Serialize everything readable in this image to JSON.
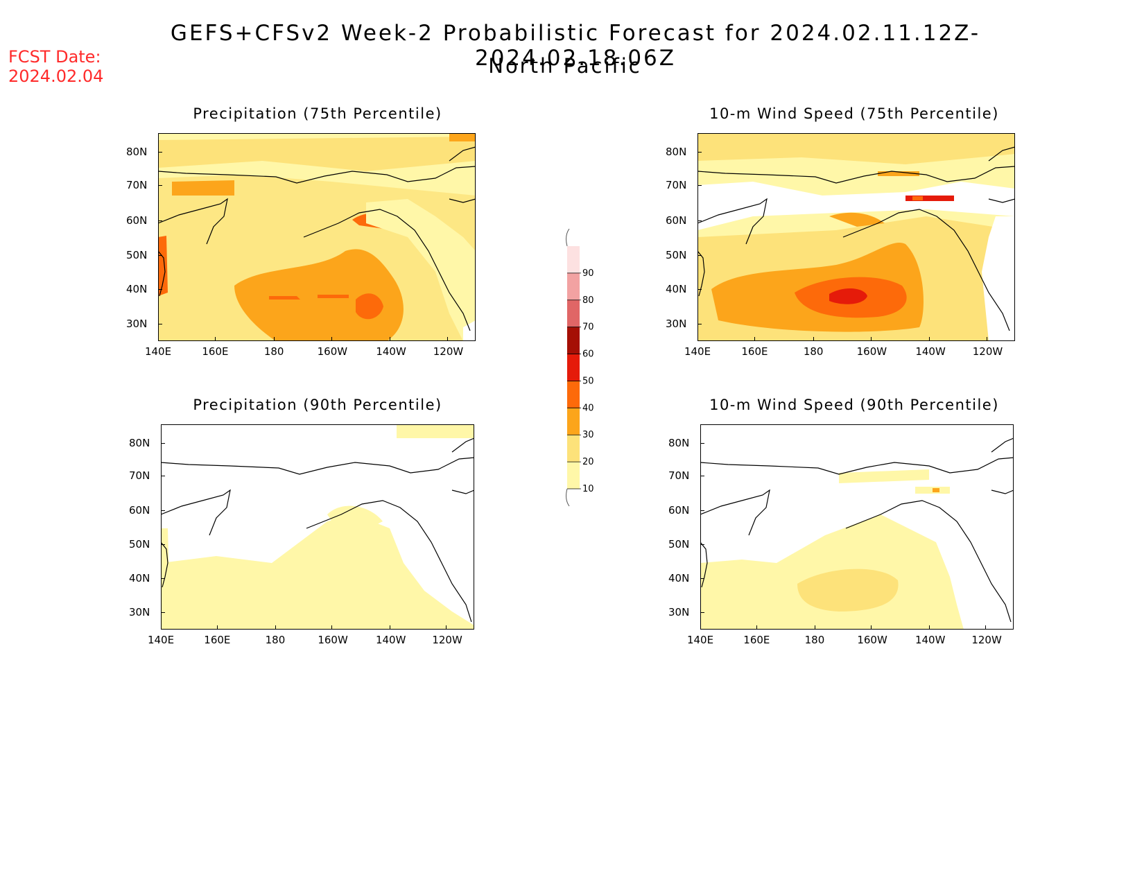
{
  "header": {
    "fcst_label": "FCST Date:",
    "fcst_date": "2024.02.04",
    "title": "GEFS+CFSv2 Week-2 Probabilistic Forecast for 2024.02.11.12Z-2024.02.18.06Z",
    "subtitle": "North Pacific"
  },
  "axes": {
    "lat_labels": [
      "80N",
      "70N",
      "60N",
      "50N",
      "40N",
      "30N"
    ],
    "lon_labels": [
      "140E",
      "160E",
      "180",
      "160W",
      "140W",
      "120W"
    ]
  },
  "panels": [
    {
      "title": "Precipitation (75th Percentile)"
    },
    {
      "title": "10-m Wind Speed (75th Percentile)"
    },
    {
      "title": "Precipitation (90th Percentile)"
    },
    {
      "title": "10-m Wind Speed (90th Percentile)"
    }
  ],
  "colorbar": {
    "levels": [
      "10",
      "20",
      "30",
      "40",
      "50",
      "60",
      "70",
      "80",
      "90"
    ],
    "colors": [
      "#fff7a8",
      "#fde27a",
      "#fca51b",
      "#fd6a0a",
      "#e51b0a",
      "#a50f05",
      "#e06666",
      "#f2a2a2",
      "#fde1e1"
    ]
  }
}
